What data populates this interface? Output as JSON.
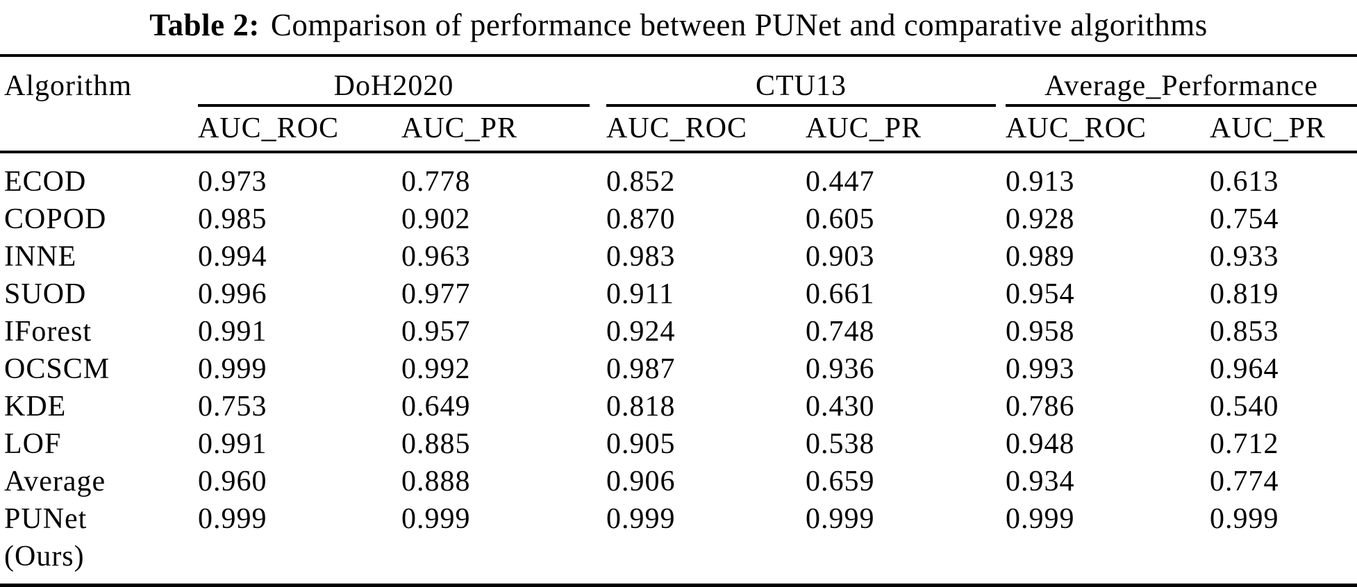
{
  "caption": {
    "label": "Table 2:",
    "text": "Comparison of performance between PUNet and comparative algorithms"
  },
  "table": {
    "corner": "Algorithm",
    "groups": [
      {
        "label": "DoH2020",
        "columns": [
          "AUC_ROC",
          "AUC_PR"
        ]
      },
      {
        "label": "CTU13",
        "columns": [
          "AUC_ROC",
          "AUC_PR"
        ]
      },
      {
        "label": "Average_Performance",
        "columns": [
          "AUC_ROC",
          "AUC_PR"
        ]
      }
    ],
    "rows": [
      {
        "algorithm": "ECOD",
        "values": [
          "0.973",
          "0.778",
          "0.852",
          "0.447",
          "0.913",
          "0.613"
        ]
      },
      {
        "algorithm": "COPOD",
        "values": [
          "0.985",
          "0.902",
          "0.870",
          "0.605",
          "0.928",
          "0.754"
        ]
      },
      {
        "algorithm": "INNE",
        "values": [
          "0.994",
          "0.963",
          "0.983",
          "0.903",
          "0.989",
          "0.933"
        ]
      },
      {
        "algorithm": "SUOD",
        "values": [
          "0.996",
          "0.977",
          "0.911",
          "0.661",
          "0.954",
          "0.819"
        ]
      },
      {
        "algorithm": "IForest",
        "values": [
          "0.991",
          "0.957",
          "0.924",
          "0.748",
          "0.958",
          "0.853"
        ]
      },
      {
        "algorithm": "OCSCM",
        "values": [
          "0.999",
          "0.992",
          "0.987",
          "0.936",
          "0.993",
          "0.964"
        ]
      },
      {
        "algorithm": "KDE",
        "values": [
          "0.753",
          "0.649",
          "0.818",
          "0.430",
          "0.786",
          "0.540"
        ]
      },
      {
        "algorithm": "LOF",
        "values": [
          "0.991",
          "0.885",
          "0.905",
          "0.538",
          "0.948",
          "0.712"
        ]
      },
      {
        "algorithm": "Average",
        "values": [
          "0.960",
          "0.888",
          "0.906",
          "0.659",
          "0.934",
          "0.774"
        ]
      },
      {
        "algorithm": "PUNet",
        "suffix": "(Ours)",
        "values": [
          "0.999",
          "0.999",
          "0.999",
          "0.999",
          "0.999",
          "0.999"
        ]
      }
    ]
  }
}
